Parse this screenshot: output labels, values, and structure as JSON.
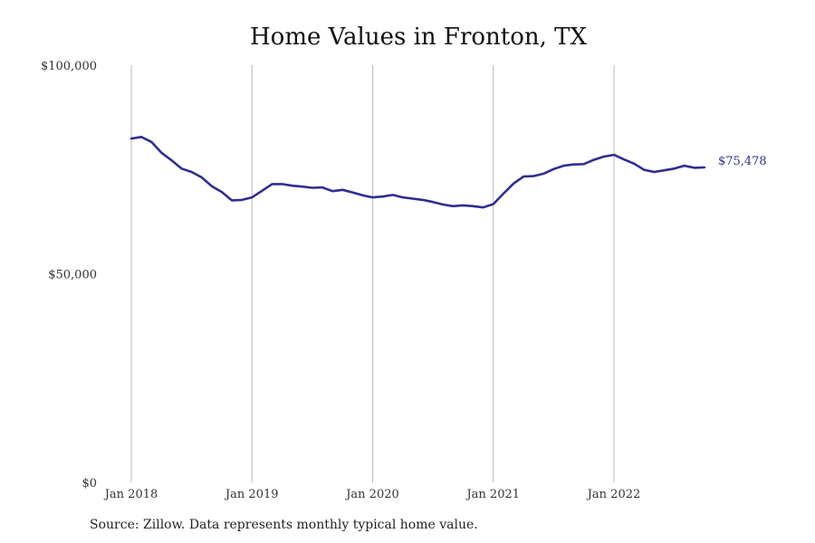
{
  "chart_data": {
    "type": "line",
    "title": "Home Values in Fronton, TX",
    "xlabel": "",
    "ylabel": "",
    "ylim": [
      0,
      100000
    ],
    "y_ticks": [
      {
        "value": 0,
        "label": "$0"
      },
      {
        "value": 50000,
        "label": "$50,000"
      },
      {
        "value": 100000,
        "label": "$100,000"
      }
    ],
    "x_ticks": [
      {
        "date": "2018-01",
        "label": "Jan 2018"
      },
      {
        "date": "2019-01",
        "label": "Jan 2019"
      },
      {
        "date": "2020-01",
        "label": "Jan 2020"
      },
      {
        "date": "2021-01",
        "label": "Jan 2021"
      },
      {
        "date": "2022-01",
        "label": "Jan 2022"
      }
    ],
    "grid": "vertical lines at year ticks",
    "line_color": "#2e2e8f",
    "series": [
      {
        "x": [
          "2018-01",
          "2018-02",
          "2018-03",
          "2018-04",
          "2018-05",
          "2018-06",
          "2018-07",
          "2018-08",
          "2018-09",
          "2018-10",
          "2018-11",
          "2018-12",
          "2019-01",
          "2019-02",
          "2019-03",
          "2019-04",
          "2019-05",
          "2019-06",
          "2019-07",
          "2019-08",
          "2019-09",
          "2019-10",
          "2019-11",
          "2019-12",
          "2020-01",
          "2020-02",
          "2020-03",
          "2020-04",
          "2020-05",
          "2020-06",
          "2020-07",
          "2020-08",
          "2020-09",
          "2020-10",
          "2020-11",
          "2020-12",
          "2021-01",
          "2021-02",
          "2021-03",
          "2021-04",
          "2021-05",
          "2021-06",
          "2021-07",
          "2021-08",
          "2021-09",
          "2021-10",
          "2021-11",
          "2021-12",
          "2022-01",
          "2022-02",
          "2022-03",
          "2022-04",
          "2022-05",
          "2022-06",
          "2022-07",
          "2022-08",
          "2022-09",
          "2022-10"
        ],
        "values": [
          82400,
          82800,
          81600,
          79000,
          77200,
          75200,
          74400,
          73100,
          71000,
          69600,
          67600,
          67700,
          68300,
          69900,
          71500,
          71500,
          71100,
          70900,
          70600,
          70700,
          69800,
          70100,
          69500,
          68800,
          68300,
          68500,
          68900,
          68300,
          68000,
          67700,
          67200,
          66600,
          66200,
          66400,
          66200,
          65900,
          66700,
          69200,
          71600,
          73300,
          73400,
          74000,
          75100,
          75900,
          76200,
          76300,
          77300,
          78100,
          78500,
          77400,
          76400,
          74900,
          74400,
          74800,
          75200,
          75900,
          75400,
          75478
        ]
      }
    ],
    "end_label": "$75,478"
  },
  "source": "Source: Zillow. Data represents monthly typical home value."
}
